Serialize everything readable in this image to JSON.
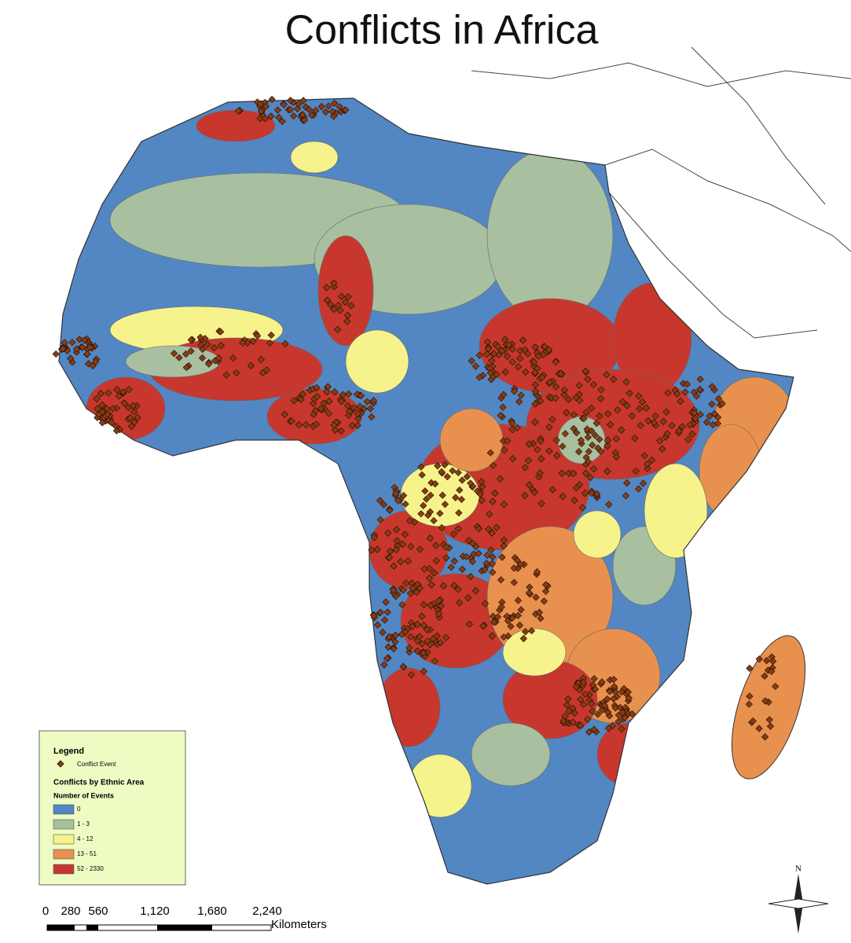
{
  "title": "Conflicts in Africa",
  "legend": {
    "title": "Legend",
    "point": {
      "label": "Conflict Event",
      "color": "#8a3b12"
    },
    "heading": "Conflicts by Ethnic Area",
    "subheading": "Number of Events",
    "classes": [
      {
        "label": "0",
        "color": "#5287c4"
      },
      {
        "label": "1 - 3",
        "color": "#a8bfa0"
      },
      {
        "label": "4 - 12",
        "color": "#f7f38c"
      },
      {
        "label": "13 - 51",
        "color": "#e8914f"
      },
      {
        "label": "52 - 2330",
        "color": "#c8372d"
      }
    ]
  },
  "scale_bar": {
    "labels": [
      "0",
      "280",
      "560",
      "1,120",
      "1,680",
      "2,240"
    ],
    "unit": "Kilometers"
  },
  "north_arrow": "N"
}
